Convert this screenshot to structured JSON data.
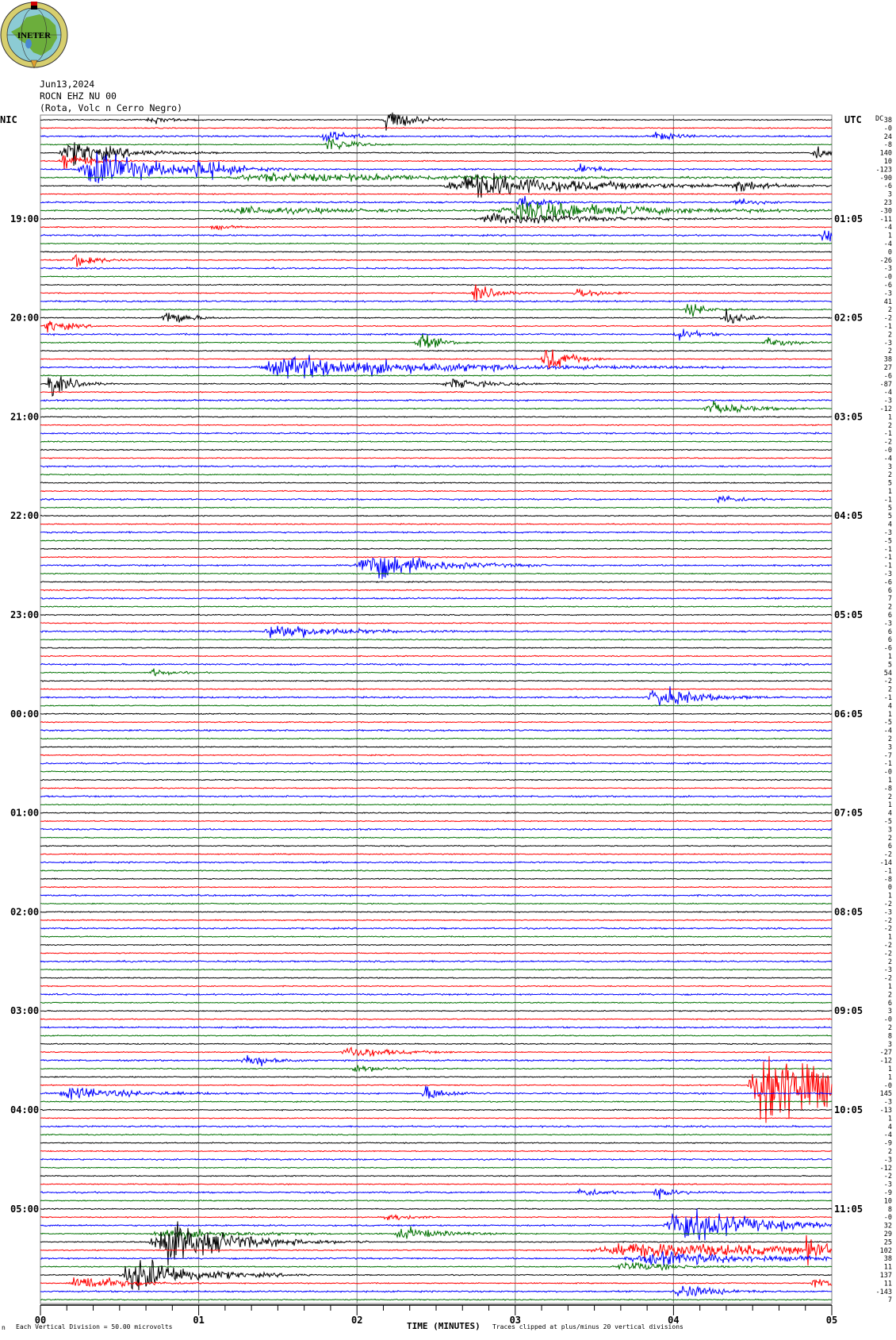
{
  "logo": {
    "text": "INETER"
  },
  "header": {
    "date": "Jun13,2024",
    "channel": "ROCN EHZ NU 00",
    "station": "(Rota, Volc n Cerro Negro)"
  },
  "left_zone_label": "NIC",
  "right_zone_label": "UTC",
  "dc_label": "DC",
  "footer": {
    "corner_mark": "n",
    "scale_text": "Each Vertical Division =   50.00 microvolts",
    "xlabel": "TIME (MINUTES)",
    "clip_text": "Traces clipped at plus/minus 20 vertical divisions"
  },
  "colors": {
    "trace_cycle": [
      "#000000",
      "#ff0000",
      "#0000ff",
      "#007000"
    ],
    "grid": "#808080"
  },
  "chart_data": {
    "type": "line",
    "title": "",
    "xlabel": "TIME (MINUTES)",
    "xlim": [
      0,
      5
    ],
    "x_ticks": [
      "00",
      "01",
      "02",
      "03",
      "04",
      "05"
    ],
    "minor_tick_seconds": 10,
    "lines_per_hour": 12,
    "minutes_per_line": 5,
    "vertical_division_microvolts": 50,
    "left_hour_labels": [
      "19:00",
      "20:00",
      "21:00",
      "22:00",
      "23:00",
      "00:00",
      "01:00",
      "02:00",
      "03:00",
      "04:00",
      "05:00"
    ],
    "right_hour_labels": [
      "01:05",
      "02:05",
      "03:05",
      "04:05",
      "05:05",
      "06:05",
      "07:05",
      "08:05",
      "09:05",
      "10:05",
      "11:05"
    ],
    "dc_offsets": [
      "38",
      "-0",
      "24",
      "-8",
      "140",
      "10",
      "-123",
      "-90",
      "-6",
      "3",
      "23",
      "-30",
      "-11",
      "-4",
      "1",
      "-4",
      "0",
      "-26",
      "-3",
      "-0",
      "-6",
      "-3",
      "41",
      "2",
      "-2",
      "-1",
      "2",
      "-3",
      "2",
      "38",
      "27",
      "-6",
      "-87",
      "-4",
      "-3",
      "-12",
      "1",
      "2",
      "-1",
      "-2",
      "-0",
      "-4",
      "3",
      "2",
      "5",
      "1",
      "-1",
      "5",
      "5",
      "4",
      "-3",
      "-5",
      "-1",
      "-1",
      "-1",
      "-3",
      "-6",
      "6",
      "7",
      "2",
      "6",
      "-3",
      "6",
      "6",
      "-6",
      "1",
      "5",
      "54",
      "-2",
      "2",
      "-1",
      "4",
      "1",
      "-5",
      "-4",
      "2",
      "3",
      "-7",
      "-1",
      "-0",
      "1",
      "-8",
      "2",
      "1",
      "4",
      "-5",
      "3",
      "2",
      "6",
      "-2",
      "-14",
      "-1",
      "-8",
      "0",
      "1",
      "-2",
      "-3",
      "-2",
      "-2",
      "1",
      "-2",
      "-2",
      "2",
      "-3",
      "-2",
      "1",
      "2",
      "6",
      "3",
      "-0",
      "2",
      "8",
      "3",
      "-27",
      "-12",
      "1",
      "1",
      "-0",
      "145",
      "-3",
      "-13",
      "1",
      "4",
      "-4",
      "-9",
      "2",
      "-3",
      "-12",
      "-2",
      "-3",
      "-9",
      "10",
      "8",
      "-0",
      "32",
      "29",
      "25",
      "102",
      "38",
      "11",
      "137",
      "11",
      "-143",
      "7"
    ],
    "events": [
      {
        "line": 0,
        "minute": 2.2,
        "amp": 2.5
      },
      {
        "line": 0,
        "minute": 0.7,
        "amp": 0.6
      },
      {
        "line": 2,
        "minute": 1.8,
        "amp": 1.2
      },
      {
        "line": 2,
        "minute": 3.9,
        "amp": 0.8
      },
      {
        "line": 3,
        "minute": 1.83,
        "amp": 1.5
      },
      {
        "line": 4,
        "minute": 0.2,
        "amp": 2.0,
        "dur": 0.6
      },
      {
        "line": 4,
        "minute": 4.9,
        "amp": 1.2
      },
      {
        "line": 5,
        "minute": 0.15,
        "amp": 1.5,
        "dur": 0.3
      },
      {
        "line": 6,
        "minute": 0.35,
        "amp": 3.0,
        "dur": 0.8
      },
      {
        "line": 6,
        "minute": 1.0,
        "amp": 2.0
      },
      {
        "line": 6,
        "minute": 3.4,
        "amp": 1.0
      },
      {
        "line": 7,
        "minute": 1.5,
        "amp": 0.7,
        "dur": 2.5
      },
      {
        "line": 8,
        "minute": 2.75,
        "amp": 2.0,
        "dur": 1.5
      },
      {
        "line": 8,
        "minute": 4.4,
        "amp": 1.2
      },
      {
        "line": 10,
        "minute": 3.05,
        "amp": 1.2
      },
      {
        "line": 10,
        "minute": 4.4,
        "amp": 0.6
      },
      {
        "line": 11,
        "minute": 3.1,
        "amp": 1.6,
        "dur": 1.5
      },
      {
        "line": 11,
        "minute": 1.3,
        "amp": 0.6,
        "dur": 1.5
      },
      {
        "line": 12,
        "minute": 2.9,
        "amp": 0.9,
        "dur": 1.2
      },
      {
        "line": 13,
        "minute": 1.1,
        "amp": 0.4
      },
      {
        "line": 14,
        "minute": 4.95,
        "amp": 1.2
      },
      {
        "line": 17,
        "minute": 0.23,
        "amp": 1.3
      },
      {
        "line": 21,
        "minute": 2.75,
        "amp": 1.5
      },
      {
        "line": 21,
        "minute": 3.4,
        "amp": 1.0
      },
      {
        "line": 23,
        "minute": 4.1,
        "amp": 1.1
      },
      {
        "line": 24,
        "minute": 0.8,
        "amp": 1.5
      },
      {
        "line": 24,
        "minute": 4.33,
        "amp": 1.3
      },
      {
        "line": 25,
        "minute": 0.05,
        "amp": 1.2
      },
      {
        "line": 26,
        "minute": 4.03,
        "amp": 0.9
      },
      {
        "line": 27,
        "minute": 2.4,
        "amp": 1.5
      },
      {
        "line": 27,
        "minute": 4.6,
        "amp": 1.0
      },
      {
        "line": 29,
        "minute": 3.2,
        "amp": 2.5
      },
      {
        "line": 30,
        "minute": 1.6,
        "amp": 1.8,
        "dur": 1.8
      },
      {
        "line": 32,
        "minute": 0.07,
        "amp": 2.2
      },
      {
        "line": 32,
        "minute": 2.6,
        "amp": 0.8,
        "dur": 0.5
      },
      {
        "line": 35,
        "minute": 4.25,
        "amp": 1.0,
        "dur": 0.5
      },
      {
        "line": 46,
        "minute": 4.3,
        "amp": 0.7
      },
      {
        "line": 54,
        "minute": 2.08,
        "amp": 2.5,
        "dur": 0.7
      },
      {
        "line": 62,
        "minute": 1.5,
        "amp": 1.3,
        "dur": 0.7
      },
      {
        "line": 67,
        "minute": 0.72,
        "amp": 0.6
      },
      {
        "line": 70,
        "minute": 3.9,
        "amp": 1.8,
        "dur": 0.5
      },
      {
        "line": 113,
        "minute": 1.97,
        "amp": 1.0,
        "dur": 0.5
      },
      {
        "line": 114,
        "minute": 1.3,
        "amp": 1.5
      },
      {
        "line": 115,
        "minute": 2.0,
        "amp": 0.6,
        "dur": 0.4
      },
      {
        "line": 117,
        "minute": 4.6,
        "amp": 8.0,
        "dur": 0.9
      },
      {
        "line": 118,
        "minute": 0.2,
        "amp": 1.0,
        "dur": 0.7
      },
      {
        "line": 118,
        "minute": 2.44,
        "amp": 1.2
      },
      {
        "line": 130,
        "minute": 3.42,
        "amp": 0.8
      },
      {
        "line": 130,
        "minute": 3.9,
        "amp": 0.8
      },
      {
        "line": 133,
        "minute": 2.2,
        "amp": 0.7
      },
      {
        "line": 134,
        "minute": 4.05,
        "amp": 3.0,
        "dur": 0.9
      },
      {
        "line": 135,
        "minute": 2.3,
        "amp": 1.0,
        "dur": 0.5
      },
      {
        "line": 135,
        "minute": 0.8,
        "amp": 0.8,
        "dur": 0.9
      },
      {
        "line": 136,
        "minute": 0.8,
        "amp": 3.5,
        "dur": 0.8
      },
      {
        "line": 137,
        "minute": 3.8,
        "amp": 1.3,
        "dur": 2.5
      },
      {
        "line": 137,
        "minute": 4.85,
        "amp": 1.8
      },
      {
        "line": 138,
        "minute": 3.9,
        "amp": 1.0,
        "dur": 1.5
      },
      {
        "line": 139,
        "minute": 3.7,
        "amp": 0.8,
        "dur": 0.6
      },
      {
        "line": 140,
        "minute": 0.6,
        "amp": 3.0,
        "dur": 0.7
      },
      {
        "line": 141,
        "minute": 0.25,
        "amp": 1.5,
        "dur": 0.5
      },
      {
        "line": 141,
        "minute": 4.9,
        "amp": 1.0
      },
      {
        "line": 142,
        "minute": 4.05,
        "amp": 1.2,
        "dur": 0.4
      }
    ]
  }
}
